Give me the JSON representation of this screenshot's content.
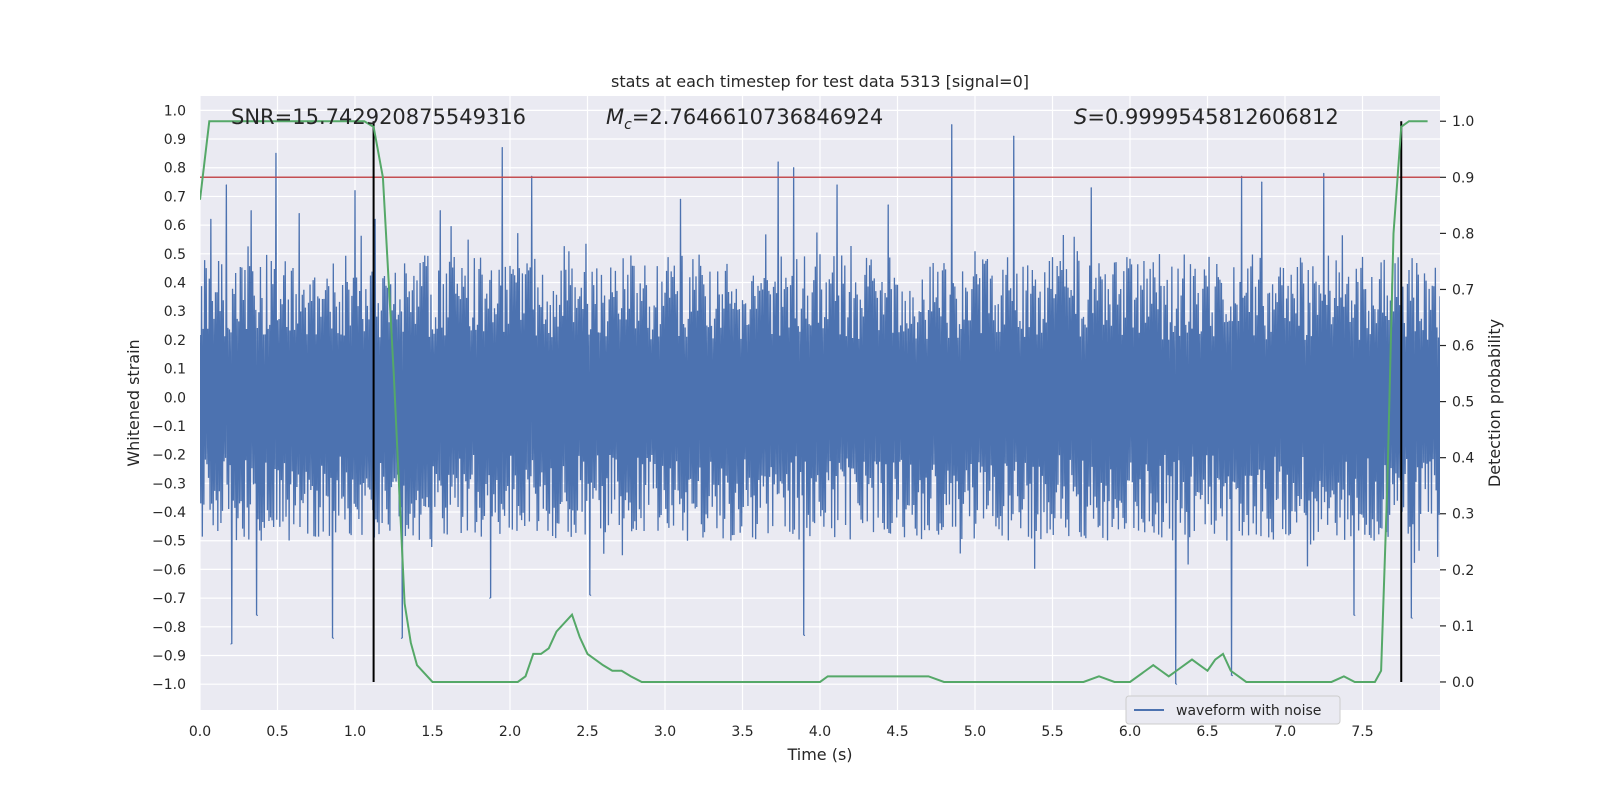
{
  "chart_data": {
    "type": "line",
    "title": "stats at each timestep for test data 5313 [signal=0]",
    "xlabel": "Time (s)",
    "ylabel_left": "Whitened strain",
    "ylabel_right": "Detection probability",
    "xlim": [
      0.0,
      8.0
    ],
    "ylim_left": [
      -1.09,
      1.05
    ],
    "ylim_right": [
      -0.05,
      1.045
    ],
    "x_ticks": [
      0.0,
      0.5,
      1.0,
      1.5,
      2.0,
      2.5,
      3.0,
      3.5,
      4.0,
      4.5,
      5.0,
      5.5,
      6.0,
      6.5,
      7.0,
      7.5
    ],
    "x_tick_labels": [
      "0.0",
      "0.5",
      "1.0",
      "1.5",
      "2.0",
      "2.5",
      "3.0",
      "3.5",
      "4.0",
      "4.5",
      "5.0",
      "5.5",
      "6.0",
      "6.5",
      "7.0",
      "7.5"
    ],
    "y_left_ticks": [
      1.0,
      0.9,
      0.8,
      0.7,
      0.6,
      0.5,
      0.4,
      0.3,
      0.2,
      0.1,
      0.0,
      -0.1,
      -0.2,
      -0.3,
      -0.4,
      -0.5,
      -0.6,
      -0.7,
      -0.8,
      -0.9,
      -1.0
    ],
    "y_left_tick_labels": [
      "1.0",
      "0.9",
      "0.8",
      "0.7",
      "0.6",
      "0.5",
      "0.4",
      "0.3",
      "0.2",
      "0.1",
      "0.0",
      "−0.1",
      "−0.2",
      "−0.3",
      "−0.4",
      "−0.5",
      "−0.6",
      "−0.7",
      "−0.8",
      "−0.9",
      "−1.0"
    ],
    "y_right_ticks": [
      1.0,
      0.9,
      0.8,
      0.7,
      0.6,
      0.5,
      0.4,
      0.3,
      0.2,
      0.1,
      0.0
    ],
    "y_right_tick_labels": [
      "1.0",
      "0.9",
      "0.8",
      "0.7",
      "0.6",
      "0.5",
      "0.4",
      "0.3",
      "0.2",
      "0.1",
      "0.0"
    ],
    "annotations": {
      "snr": "SNR=15.742920875549316",
      "mc_symbol": "M",
      "mc_sub": "c",
      "mc_value": "=2.7646610736846924",
      "s_symbol": "S",
      "s_value": "=0.9999545812606812"
    },
    "legend": {
      "label": "waveform with noise",
      "location": "lower-right"
    },
    "threshold": {
      "value": 0.9,
      "axis": "right",
      "color": "#c44e52"
    },
    "vlines": [
      1.12,
      7.75
    ],
    "waveform": {
      "name": "waveform with noise",
      "color": "#4c72b0",
      "typical_range": [
        -0.47,
        0.6
      ],
      "spikes": [
        {
          "x": 0.07,
          "y": 0.62
        },
        {
          "x": 0.17,
          "y": 0.74
        },
        {
          "x": 0.2,
          "y": -0.86
        },
        {
          "x": 0.33,
          "y": 0.65
        },
        {
          "x": 0.37,
          "y": -0.76
        },
        {
          "x": 0.49,
          "y": 0.85
        },
        {
          "x": 0.64,
          "y": 0.64
        },
        {
          "x": 0.86,
          "y": -0.84
        },
        {
          "x": 1.0,
          "y": 0.72
        },
        {
          "x": 1.13,
          "y": 0.62
        },
        {
          "x": 1.3,
          "y": -0.84
        },
        {
          "x": 1.55,
          "y": 0.65
        },
        {
          "x": 1.87,
          "y": -0.7
        },
        {
          "x": 1.95,
          "y": 0.87
        },
        {
          "x": 2.14,
          "y": 0.77
        },
        {
          "x": 2.52,
          "y": -0.69
        },
        {
          "x": 3.1,
          "y": 0.69
        },
        {
          "x": 3.73,
          "y": 0.82
        },
        {
          "x": 3.83,
          "y": 0.8
        },
        {
          "x": 3.9,
          "y": -0.83
        },
        {
          "x": 4.11,
          "y": 0.74
        },
        {
          "x": 4.44,
          "y": 0.67
        },
        {
          "x": 4.85,
          "y": 0.95
        },
        {
          "x": 5.25,
          "y": 0.91
        },
        {
          "x": 5.75,
          "y": 0.73
        },
        {
          "x": 6.3,
          "y": -1.0
        },
        {
          "x": 6.66,
          "y": -0.97
        },
        {
          "x": 6.72,
          "y": 0.77
        },
        {
          "x": 6.85,
          "y": 0.75
        },
        {
          "x": 7.25,
          "y": 0.78
        },
        {
          "x": 7.45,
          "y": -0.76
        },
        {
          "x": 7.82,
          "y": -0.77
        }
      ]
    },
    "detection_probability": {
      "color": "#55a868",
      "x": [
        0.0,
        0.06,
        0.12,
        0.2,
        0.4,
        0.6,
        0.8,
        0.95,
        1.0,
        1.06,
        1.12,
        1.18,
        1.25,
        1.32,
        1.36,
        1.4,
        1.45,
        1.5,
        1.6,
        1.8,
        2.0,
        2.05,
        2.1,
        2.15,
        2.2,
        2.25,
        2.3,
        2.4,
        2.45,
        2.5,
        2.55,
        2.6,
        2.66,
        2.72,
        2.78,
        2.85,
        2.9,
        3.0,
        3.5,
        4.0,
        4.05,
        4.15,
        4.3,
        4.45,
        4.55,
        4.6,
        4.7,
        4.8,
        5.0,
        5.5,
        5.7,
        5.8,
        5.9,
        6.0,
        6.1,
        6.15,
        6.2,
        6.25,
        6.3,
        6.4,
        6.45,
        6.5,
        6.55,
        6.6,
        6.65,
        6.7,
        6.75,
        6.8,
        7.0,
        7.2,
        7.3,
        7.38,
        7.45,
        7.52,
        7.58,
        7.62,
        7.66,
        7.7,
        7.75,
        7.8,
        7.83,
        7.88,
        7.92
      ],
      "y": [
        0.86,
        1.0,
        1.0,
        1.0,
        1.0,
        1.0,
        1.0,
        1.0,
        1.0,
        1.0,
        0.99,
        0.9,
        0.55,
        0.14,
        0.07,
        0.03,
        0.015,
        0.0,
        0.0,
        0.0,
        0.0,
        0.0,
        0.01,
        0.05,
        0.05,
        0.06,
        0.09,
        0.12,
        0.08,
        0.05,
        0.04,
        0.03,
        0.02,
        0.02,
        0.01,
        0.0,
        0.0,
        0.0,
        0.0,
        0.0,
        0.01,
        0.01,
        0.01,
        0.01,
        0.01,
        0.01,
        0.01,
        0.0,
        0.0,
        0.0,
        0.0,
        0.01,
        0.0,
        0.0,
        0.02,
        0.03,
        0.02,
        0.01,
        0.02,
        0.04,
        0.03,
        0.02,
        0.04,
        0.05,
        0.02,
        0.01,
        0.0,
        0.0,
        0.0,
        0.0,
        0.0,
        0.01,
        0.0,
        0.0,
        0.0,
        0.02,
        0.35,
        0.8,
        0.99,
        1.0,
        1.0,
        1.0,
        1.0
      ]
    }
  }
}
